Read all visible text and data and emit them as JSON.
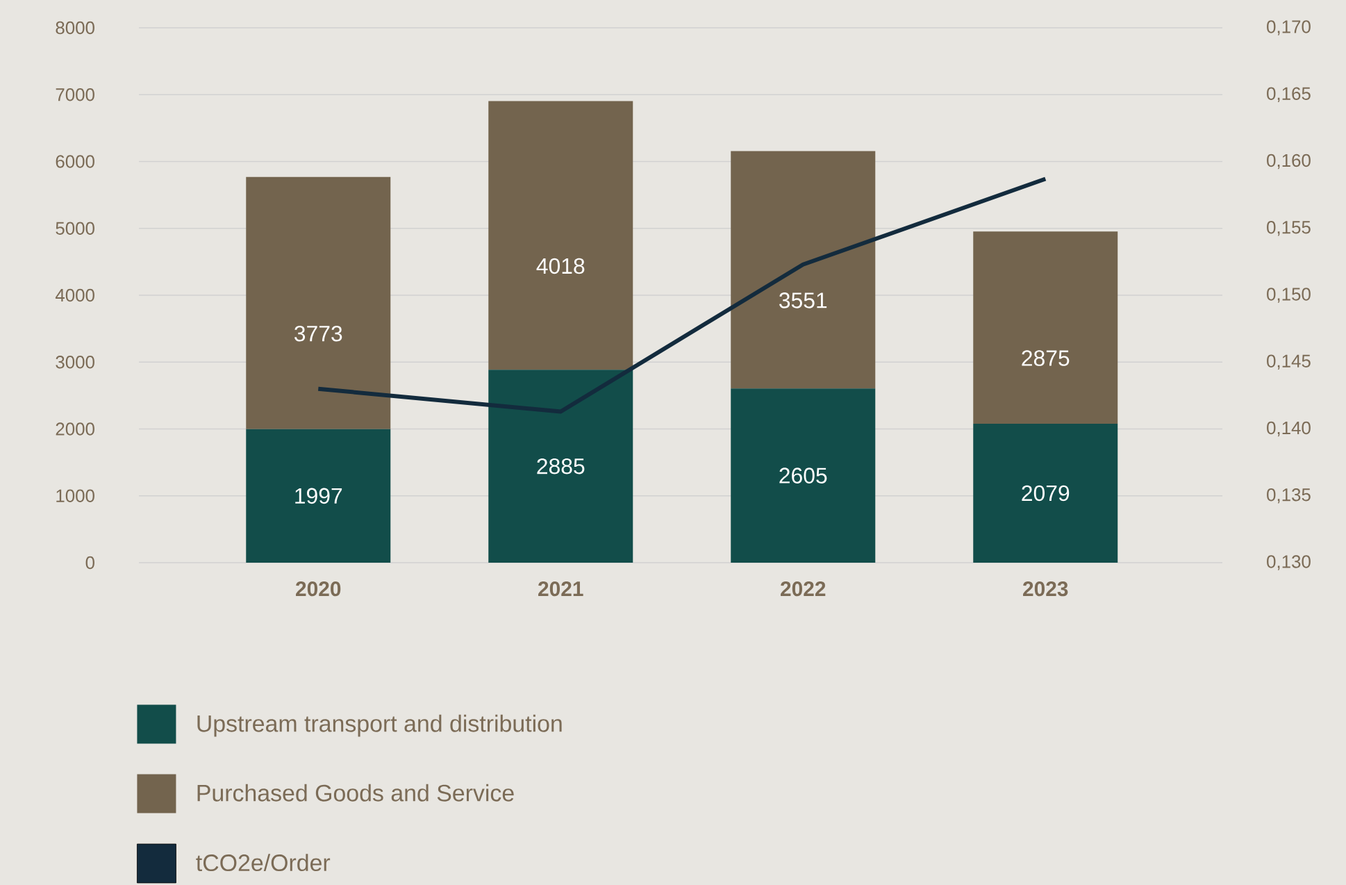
{
  "chart_data": {
    "type": "bar",
    "stacked": true,
    "categories": [
      "2020",
      "2021",
      "2022",
      "2023"
    ],
    "series": [
      {
        "name": "Upstream transport and distribution",
        "color": "#124d4a",
        "values": [
          1997,
          2885,
          2605,
          2079
        ],
        "value_labels": [
          "1997",
          "2885",
          "2605",
          "2079"
        ]
      },
      {
        "name": "Purchased Goods and Service",
        "color": "#73644e",
        "values": [
          3773,
          4018,
          3551,
          2875
        ],
        "value_labels": [
          "3773",
          "4018",
          "3551",
          "2875"
        ]
      },
      {
        "name": "tCO2e/Order",
        "color": "#132b3d",
        "type": "line",
        "axis": "y2",
        "values": [
          0.143,
          0.1413,
          0.1523,
          0.1587
        ]
      }
    ],
    "ylim": [
      0,
      8000
    ],
    "yticks": [
      0,
      1000,
      2000,
      3000,
      4000,
      5000,
      6000,
      7000,
      8000
    ],
    "y2lim": [
      0.13,
      0.17
    ],
    "y2ticks": [
      {
        "value": 0.13,
        "label": "0,130"
      },
      {
        "value": 0.135,
        "label": "0,135"
      },
      {
        "value": 0.14,
        "label": "0,140"
      },
      {
        "value": 0.145,
        "label": "0,145"
      },
      {
        "value": 0.15,
        "label": "0,150"
      },
      {
        "value": 0.155,
        "label": "0,155"
      },
      {
        "value": 0.16,
        "label": "0,160"
      },
      {
        "value": 0.165,
        "label": "0,165"
      },
      {
        "value": 0.17,
        "label": "0,170"
      }
    ],
    "grid": "y",
    "legend": "bottom left"
  }
}
